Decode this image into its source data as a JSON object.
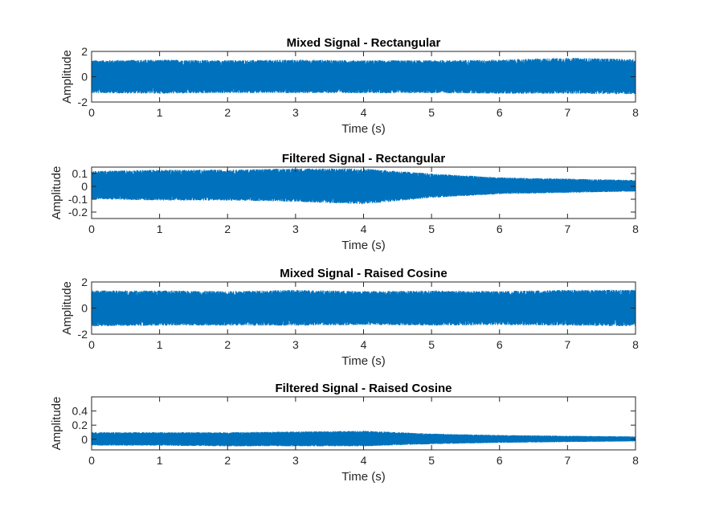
{
  "chart_data": [
    {
      "type": "line",
      "title": "Mixed Signal - Rectangular",
      "xlabel": "Time (s)",
      "ylabel": "Amplitude",
      "xlim": [
        0,
        8
      ],
      "ylim": [
        -2,
        2
      ],
      "xticks": [
        "0",
        "1",
        "2",
        "3",
        "4",
        "5",
        "6",
        "7",
        "8"
      ],
      "yticks": [
        {
          "v": -2,
          "label": "-2"
        },
        {
          "v": 0,
          "label": "0"
        },
        {
          "v": 2,
          "label": "2"
        }
      ],
      "series": [
        {
          "color": "#0072BD",
          "envelope": [
            {
              "t": 0,
              "max": 1.3,
              "min": -1.3
            },
            {
              "t": 1,
              "max": 1.35,
              "min": -1.35
            },
            {
              "t": 2,
              "max": 1.3,
              "min": -1.3
            },
            {
              "t": 3,
              "max": 1.35,
              "min": -1.3
            },
            {
              "t": 4,
              "max": 1.3,
              "min": -1.3
            },
            {
              "t": 5,
              "max": 1.3,
              "min": -1.3
            },
            {
              "t": 6,
              "max": 1.35,
              "min": -1.35
            },
            {
              "t": 7,
              "max": 1.5,
              "min": -1.35
            },
            {
              "t": 8,
              "max": 1.4,
              "min": -1.4
            }
          ]
        }
      ]
    },
    {
      "type": "line",
      "title": "Filtered Signal - Rectangular",
      "xlabel": "Time (s)",
      "ylabel": "Amplitude",
      "xlim": [
        0,
        8
      ],
      "ylim": [
        -0.25,
        0.15
      ],
      "xticks": [
        "0",
        "1",
        "2",
        "3",
        "4",
        "5",
        "6",
        "7",
        "8"
      ],
      "yticks": [
        {
          "v": 0.1,
          "label": "0.1"
        },
        {
          "v": 0,
          "label": "0"
        },
        {
          "v": -0.1,
          "label": "-0.1"
        },
        {
          "v": -0.2,
          "label": "-0.2"
        }
      ],
      "series": [
        {
          "color": "#0072BD",
          "envelope": [
            {
              "t": 0,
              "max": 0.12,
              "min": -0.1
            },
            {
              "t": 1,
              "max": 0.13,
              "min": -0.11
            },
            {
              "t": 2,
              "max": 0.13,
              "min": -0.11
            },
            {
              "t": 3,
              "max": 0.14,
              "min": -0.12
            },
            {
              "t": 4,
              "max": 0.14,
              "min": -0.14
            },
            {
              "t": 5,
              "max": 0.1,
              "min": -0.09
            },
            {
              "t": 6,
              "max": 0.07,
              "min": -0.06
            },
            {
              "t": 7,
              "max": 0.06,
              "min": -0.05
            },
            {
              "t": 8,
              "max": 0.05,
              "min": -0.04
            }
          ]
        }
      ]
    },
    {
      "type": "line",
      "title": "Mixed Signal - Raised Cosine",
      "xlabel": "Time (s)",
      "ylabel": "Amplitude",
      "xlim": [
        0,
        8
      ],
      "ylim": [
        -2,
        2
      ],
      "xticks": [
        "0",
        "1",
        "2",
        "3",
        "4",
        "5",
        "6",
        "7",
        "8"
      ],
      "yticks": [
        {
          "v": -2,
          "label": "-2"
        },
        {
          "v": 0,
          "label": "0"
        },
        {
          "v": 2,
          "label": "2"
        }
      ],
      "series": [
        {
          "color": "#0072BD",
          "envelope": [
            {
              "t": 0,
              "max": 1.35,
              "min": -1.4
            },
            {
              "t": 1,
              "max": 1.35,
              "min": -1.35
            },
            {
              "t": 2,
              "max": 1.3,
              "min": -1.35
            },
            {
              "t": 3,
              "max": 1.4,
              "min": -1.35
            },
            {
              "t": 4,
              "max": 1.3,
              "min": -1.3
            },
            {
              "t": 5,
              "max": 1.35,
              "min": -1.35
            },
            {
              "t": 6,
              "max": 1.3,
              "min": -1.3
            },
            {
              "t": 7,
              "max": 1.4,
              "min": -1.35
            },
            {
              "t": 8,
              "max": 1.4,
              "min": -1.4
            }
          ]
        }
      ]
    },
    {
      "type": "line",
      "title": "Filtered Signal - Raised Cosine",
      "xlabel": "Time (s)",
      "ylabel": "Amplitude",
      "xlim": [
        0,
        8
      ],
      "ylim": [
        -0.15,
        0.6
      ],
      "xticks": [
        "0",
        "1",
        "2",
        "3",
        "4",
        "5",
        "6",
        "7",
        "8"
      ],
      "yticks": [
        {
          "v": 0,
          "label": "0"
        },
        {
          "v": 0.2,
          "label": "0.2"
        },
        {
          "v": 0.4,
          "label": "0.4"
        }
      ],
      "series": [
        {
          "color": "#0072BD",
          "envelope": [
            {
              "t": 0,
              "max": 0.1,
              "min": -0.09
            },
            {
              "t": 1,
              "max": 0.1,
              "min": -0.09
            },
            {
              "t": 2,
              "max": 0.1,
              "min": -0.1
            },
            {
              "t": 3,
              "max": 0.11,
              "min": -0.1
            },
            {
              "t": 4,
              "max": 0.12,
              "min": -0.1
            },
            {
              "t": 5,
              "max": 0.08,
              "min": -0.07
            },
            {
              "t": 6,
              "max": 0.06,
              "min": -0.05
            },
            {
              "t": 7,
              "max": 0.05,
              "min": -0.04
            },
            {
              "t": 8,
              "max": 0.04,
              "min": -0.03
            }
          ]
        }
      ]
    }
  ]
}
